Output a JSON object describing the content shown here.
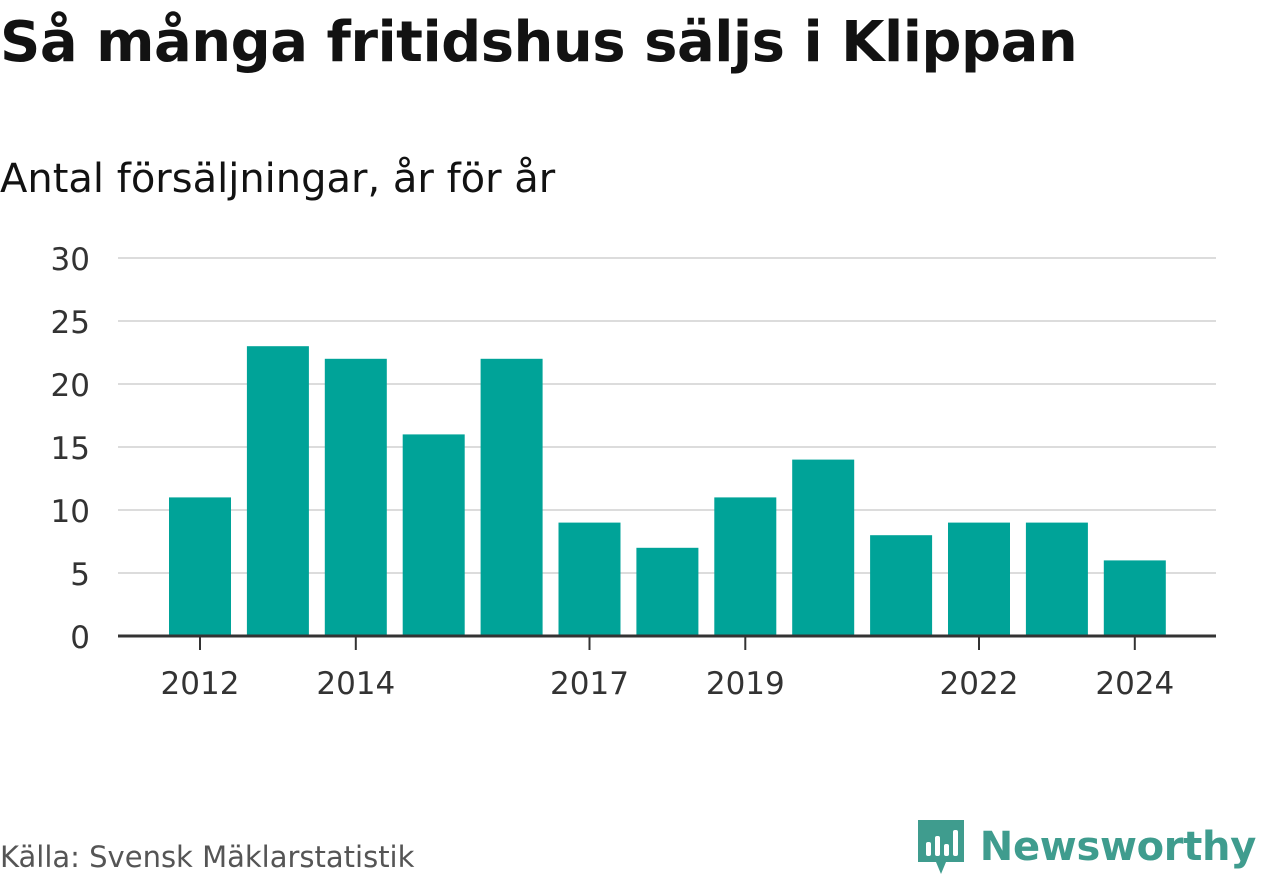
{
  "header": {
    "title": "Så många fritidshus säljs i Klippan",
    "subtitle": "Antal försäljningar, år för år"
  },
  "footer": {
    "source": "Källa: Svensk Mäklarstatistik",
    "brand": "Newsworthy"
  },
  "colors": {
    "bar": "#00a398",
    "grid": "#dcdcdc",
    "axis": "#333333",
    "brand": "#3f9c8e"
  },
  "chart_data": {
    "type": "bar",
    "categories": [
      "2012",
      "2013",
      "2014",
      "2015",
      "2016",
      "2017",
      "2018",
      "2019",
      "2020",
      "2021",
      "2022",
      "2023",
      "2024"
    ],
    "values": [
      11,
      23,
      22,
      16,
      22,
      9,
      7,
      11,
      14,
      8,
      9,
      9,
      6
    ],
    "x_tick_labels": [
      "2012",
      "2014",
      "2017",
      "2019",
      "2022",
      "2024"
    ],
    "y_ticks": [
      0,
      5,
      10,
      15,
      20,
      25,
      30
    ],
    "ylim": [
      0,
      30
    ],
    "grid": true,
    "legend": "none",
    "title": "Så många fritidshus säljs i Klippan",
    "subtitle": "Antal försäljningar, år för år",
    "xlabel": "",
    "ylabel": ""
  }
}
